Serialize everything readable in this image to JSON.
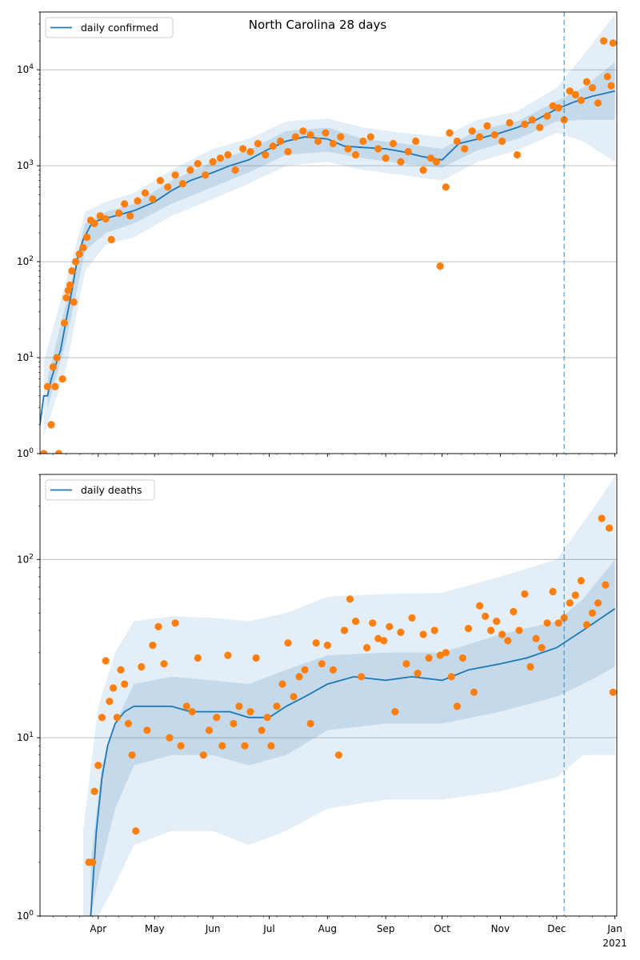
{
  "chart_data": [
    {
      "type": "line",
      "title": "North Carolina 28 days",
      "scale": "log",
      "ylim": [
        1,
        40000
      ],
      "y_ticks": [
        {
          "v": 1,
          "base": "10",
          "exp": "0"
        },
        {
          "v": 10,
          "base": "10",
          "exp": "1"
        },
        {
          "v": 100,
          "base": "10",
          "exp": "2"
        },
        {
          "v": 1000,
          "base": "10",
          "exp": "3"
        },
        {
          "v": 10000,
          "base": "10",
          "exp": "4"
        }
      ],
      "grid": "horizontal",
      "legend": {
        "placement": "top-left",
        "entries": [
          "daily confirmed"
        ]
      },
      "forecast_start": "2020-12-05",
      "colors": {
        "line": "#1f77b4",
        "points": "#ff7f0e",
        "band": "#1f77b4"
      },
      "series": [
        {
          "name": "daily confirmed",
          "kind": "line",
          "x": [
            "2020-03-01",
            "2020-03-03",
            "2020-03-05",
            "2020-03-07",
            "2020-03-09",
            "2020-03-12",
            "2020-03-15",
            "2020-03-18",
            "2020-03-21",
            "2020-03-24",
            "2020-03-28",
            "2020-04-01",
            "2020-04-10",
            "2020-04-20",
            "2020-05-01",
            "2020-05-10",
            "2020-05-20",
            "2020-06-01",
            "2020-06-10",
            "2020-06-20",
            "2020-07-01",
            "2020-07-10",
            "2020-07-20",
            "2020-08-01",
            "2020-08-10",
            "2020-08-20",
            "2020-09-01",
            "2020-09-10",
            "2020-09-20",
            "2020-10-01",
            "2020-10-10",
            "2020-10-20",
            "2020-11-01",
            "2020-11-10",
            "2020-11-20",
            "2020-12-01",
            "2020-12-10",
            "2020-12-20",
            "2021-01-01"
          ],
          "y": [
            2,
            4,
            4,
            6,
            8,
            12,
            25,
            50,
            110,
            170,
            240,
            270,
            300,
            340,
            420,
            550,
            700,
            850,
            1000,
            1150,
            1500,
            1800,
            2000,
            1900,
            1600,
            1550,
            1500,
            1400,
            1250,
            1150,
            1700,
            1900,
            2200,
            2500,
            3000,
            3900,
            4600,
            5300,
            6000
          ]
        },
        {
          "name": "band_50",
          "kind": "band",
          "x": [
            "2020-03-05",
            "2020-03-15",
            "2020-03-25",
            "2020-04-05",
            "2020-04-20",
            "2020-05-10",
            "2020-06-01",
            "2020-06-20",
            "2020-07-10",
            "2020-08-01",
            "2020-08-20",
            "2020-09-10",
            "2020-10-01",
            "2020-10-20",
            "2020-11-10",
            "2020-12-01",
            "2020-12-15",
            "2021-01-01"
          ],
          "lo": [
            3,
            15,
            130,
            200,
            250,
            400,
            600,
            850,
            1300,
            1400,
            1200,
            1050,
            950,
            1450,
            1900,
            2900,
            3000,
            3000
          ],
          "hi": [
            6,
            38,
            250,
            330,
            400,
            700,
            1100,
            1450,
            2300,
            2500,
            1900,
            1700,
            1500,
            2350,
            2900,
            4700,
            6500,
            12000
          ]
        },
        {
          "name": "band_90",
          "kind": "band",
          "x": [
            "2020-03-03",
            "2020-03-15",
            "2020-03-25",
            "2020-04-05",
            "2020-04-20",
            "2020-05-10",
            "2020-06-01",
            "2020-06-20",
            "2020-07-10",
            "2020-08-01",
            "2020-08-20",
            "2020-09-10",
            "2020-10-01",
            "2020-10-20",
            "2020-11-10",
            "2020-12-01",
            "2020-12-15",
            "2021-01-01"
          ],
          "lo": [
            1.5,
            8,
            80,
            150,
            180,
            300,
            450,
            650,
            1000,
            1100,
            900,
            800,
            700,
            1100,
            1450,
            2200,
            1800,
            1100
          ],
          "hi": [
            9,
            65,
            330,
            420,
            520,
            900,
            1500,
            1900,
            2900,
            3100,
            2500,
            2200,
            2000,
            3000,
            3700,
            6500,
            14000,
            38000
          ]
        },
        {
          "name": "reported",
          "kind": "scatter",
          "x": [
            "2020-03-03",
            "2020-03-05",
            "2020-03-07",
            "2020-03-08",
            "2020-03-09",
            "2020-03-10",
            "2020-03-11",
            "2020-03-13",
            "2020-03-14",
            "2020-03-15",
            "2020-03-16",
            "2020-03-17",
            "2020-03-18",
            "2020-03-19",
            "2020-03-20",
            "2020-03-22",
            "2020-03-24",
            "2020-03-26",
            "2020-03-28",
            "2020-03-30",
            "2020-04-02",
            "2020-04-05",
            "2020-04-08",
            "2020-04-12",
            "2020-04-15",
            "2020-04-18",
            "2020-04-22",
            "2020-04-26",
            "2020-04-30",
            "2020-05-04",
            "2020-05-08",
            "2020-05-12",
            "2020-05-16",
            "2020-05-20",
            "2020-05-24",
            "2020-05-28",
            "2020-06-01",
            "2020-06-05",
            "2020-06-09",
            "2020-06-13",
            "2020-06-17",
            "2020-06-21",
            "2020-06-25",
            "2020-06-29",
            "2020-07-03",
            "2020-07-07",
            "2020-07-11",
            "2020-07-15",
            "2020-07-19",
            "2020-07-23",
            "2020-07-27",
            "2020-07-31",
            "2020-08-04",
            "2020-08-08",
            "2020-08-12",
            "2020-08-16",
            "2020-08-20",
            "2020-08-24",
            "2020-08-28",
            "2020-09-01",
            "2020-09-05",
            "2020-09-09",
            "2020-09-13",
            "2020-09-17",
            "2020-09-21",
            "2020-09-25",
            "2020-09-28",
            "2020-09-30",
            "2020-10-03",
            "2020-10-05",
            "2020-10-09",
            "2020-10-13",
            "2020-10-17",
            "2020-10-21",
            "2020-10-25",
            "2020-10-29",
            "2020-11-02",
            "2020-11-06",
            "2020-11-10",
            "2020-11-14",
            "2020-11-18",
            "2020-11-22",
            "2020-11-26",
            "2020-11-29",
            "2020-12-02",
            "2020-12-05",
            "2020-12-08",
            "2020-12-11",
            "2020-12-14",
            "2020-12-17",
            "2020-12-20",
            "2020-12-23",
            "2020-12-26",
            "2020-12-28",
            "2020-12-30",
            "2020-12-31"
          ],
          "y": [
            1,
            5,
            2,
            8,
            5,
            10,
            1,
            6,
            23,
            42,
            50,
            57,
            80,
            38,
            100,
            120,
            140,
            180,
            270,
            250,
            300,
            280,
            170,
            320,
            400,
            300,
            430,
            520,
            450,
            700,
            600,
            800,
            650,
            900,
            1050,
            800,
            1100,
            1200,
            1300,
            900,
            1500,
            1400,
            1700,
            1300,
            1600,
            1800,
            1400,
            2000,
            2300,
            2100,
            1800,
            2200,
            1700,
            2000,
            1500,
            1300,
            1800,
            2000,
            1500,
            1200,
            1700,
            1100,
            1400,
            1800,
            900,
            1200,
            1100,
            90,
            600,
            2200,
            1800,
            1500,
            2300,
            2000,
            2600,
            2100,
            1800,
            2800,
            1300,
            2700,
            3000,
            2500,
            3300,
            4200,
            4000,
            3000,
            6000,
            5500,
            4800,
            7500,
            6500,
            4500,
            20000,
            8500,
            6800,
            19000
          ]
        }
      ]
    },
    {
      "type": "line",
      "scale": "log",
      "ylim": [
        1,
        300
      ],
      "y_ticks": [
        {
          "v": 1,
          "base": "10",
          "exp": "0"
        },
        {
          "v": 10,
          "base": "10",
          "exp": "1"
        },
        {
          "v": 100,
          "base": "10",
          "exp": "2"
        }
      ],
      "x_ticks": [
        {
          "date": "2020-04-01",
          "label": "Apr"
        },
        {
          "date": "2020-05-01",
          "label": "May"
        },
        {
          "date": "2020-06-01",
          "label": "Jun"
        },
        {
          "date": "2020-07-01",
          "label": "Jul"
        },
        {
          "date": "2020-08-01",
          "label": "Aug"
        },
        {
          "date": "2020-09-01",
          "label": "Sep"
        },
        {
          "date": "2020-10-01",
          "label": "Oct"
        },
        {
          "date": "2020-11-01",
          "label": "Nov"
        },
        {
          "date": "2020-12-01",
          "label": "Dec"
        },
        {
          "date": "2021-01-01",
          "label": "Jan"
        }
      ],
      "year_label": "2021",
      "grid": "horizontal",
      "legend": {
        "placement": "top-left",
        "entries": [
          "daily deaths"
        ]
      },
      "forecast_start": "2020-12-05",
      "series": [
        {
          "name": "daily deaths",
          "kind": "line",
          "x": [
            "2020-03-28",
            "2020-03-31",
            "2020-04-03",
            "2020-04-06",
            "2020-04-10",
            "2020-04-15",
            "2020-04-20",
            "2020-05-01",
            "2020-05-10",
            "2020-05-20",
            "2020-06-01",
            "2020-06-10",
            "2020-06-20",
            "2020-07-01",
            "2020-07-10",
            "2020-07-20",
            "2020-08-01",
            "2020-08-15",
            "2020-09-01",
            "2020-09-15",
            "2020-10-01",
            "2020-10-15",
            "2020-11-01",
            "2020-11-15",
            "2020-12-01",
            "2020-12-15",
            "2021-01-01"
          ],
          "y": [
            1,
            3,
            6,
            9,
            12,
            14,
            15,
            15,
            15,
            14,
            14,
            14,
            13,
            13,
            15,
            17,
            20,
            22,
            21,
            22,
            21,
            24,
            26,
            28,
            32,
            40,
            53
          ]
        },
        {
          "name": "band_50",
          "kind": "band",
          "x": [
            "2020-03-28",
            "2020-04-03",
            "2020-04-10",
            "2020-04-20",
            "2020-05-10",
            "2020-06-01",
            "2020-06-20",
            "2020-07-10",
            "2020-08-01",
            "2020-09-01",
            "2020-10-01",
            "2020-11-01",
            "2020-12-01",
            "2020-12-15",
            "2021-01-01"
          ],
          "lo": [
            1,
            2,
            4,
            7,
            8,
            8,
            7,
            8,
            11,
            12,
            12,
            14,
            17,
            20,
            25
          ],
          "hi": [
            2,
            7,
            12,
            20,
            22,
            21,
            20,
            24,
            29,
            30,
            30,
            38,
            45,
            60,
            100
          ]
        },
        {
          "name": "band_90",
          "kind": "band",
          "x": [
            "2020-03-24",
            "2020-04-01",
            "2020-04-10",
            "2020-04-20",
            "2020-05-10",
            "2020-06-01",
            "2020-06-20",
            "2020-07-10",
            "2020-08-01",
            "2020-09-01",
            "2020-10-01",
            "2020-11-01",
            "2020-12-01",
            "2020-12-15",
            "2021-01-01"
          ],
          "lo": [
            1,
            1,
            1.5,
            2.5,
            3,
            3,
            2.5,
            3,
            4,
            4.5,
            4.5,
            5,
            6,
            8,
            8
          ],
          "hi": [
            3,
            15,
            30,
            45,
            48,
            47,
            45,
            50,
            62,
            64,
            65,
            80,
            100,
            160,
            290
          ]
        },
        {
          "name": "reported",
          "kind": "scatter",
          "x": [
            "2020-03-27",
            "2020-03-29",
            "2020-03-30",
            "2020-04-01",
            "2020-04-03",
            "2020-04-05",
            "2020-04-07",
            "2020-04-09",
            "2020-04-11",
            "2020-04-13",
            "2020-04-15",
            "2020-04-17",
            "2020-04-19",
            "2020-04-21",
            "2020-04-24",
            "2020-04-27",
            "2020-04-30",
            "2020-05-03",
            "2020-05-06",
            "2020-05-09",
            "2020-05-12",
            "2020-05-15",
            "2020-05-18",
            "2020-05-21",
            "2020-05-24",
            "2020-05-27",
            "2020-05-30",
            "2020-06-03",
            "2020-06-06",
            "2020-06-09",
            "2020-06-12",
            "2020-06-15",
            "2020-06-18",
            "2020-06-21",
            "2020-06-24",
            "2020-06-27",
            "2020-06-30",
            "2020-07-02",
            "2020-07-05",
            "2020-07-08",
            "2020-07-11",
            "2020-07-14",
            "2020-07-17",
            "2020-07-20",
            "2020-07-23",
            "2020-07-26",
            "2020-07-29",
            "2020-08-01",
            "2020-08-04",
            "2020-08-07",
            "2020-08-10",
            "2020-08-13",
            "2020-08-16",
            "2020-08-19",
            "2020-08-22",
            "2020-08-25",
            "2020-08-28",
            "2020-08-31",
            "2020-09-03",
            "2020-09-06",
            "2020-09-09",
            "2020-09-12",
            "2020-09-15",
            "2020-09-18",
            "2020-09-21",
            "2020-09-24",
            "2020-09-27",
            "2020-09-30",
            "2020-10-03",
            "2020-10-06",
            "2020-10-09",
            "2020-10-12",
            "2020-10-15",
            "2020-10-18",
            "2020-10-21",
            "2020-10-24",
            "2020-10-27",
            "2020-10-30",
            "2020-11-02",
            "2020-11-05",
            "2020-11-08",
            "2020-11-11",
            "2020-11-14",
            "2020-11-17",
            "2020-11-20",
            "2020-11-23",
            "2020-11-26",
            "2020-11-29",
            "2020-12-02",
            "2020-12-05",
            "2020-12-08",
            "2020-12-11",
            "2020-12-14",
            "2020-12-17",
            "2020-12-20",
            "2020-12-23",
            "2020-12-25",
            "2020-12-27",
            "2020-12-29",
            "2020-12-31"
          ],
          "y": [
            2,
            2,
            5,
            7,
            13,
            27,
            16,
            19,
            13,
            24,
            20,
            12,
            8,
            3,
            25,
            11,
            33,
            42,
            26,
            10,
            44,
            9,
            15,
            14,
            28,
            8,
            11,
            13,
            9,
            29,
            12,
            15,
            9,
            14,
            28,
            11,
            13,
            9,
            15,
            20,
            34,
            17,
            22,
            24,
            12,
            34,
            26,
            33,
            24,
            8,
            40,
            60,
            45,
            22,
            32,
            44,
            36,
            35,
            42,
            14,
            39,
            26,
            47,
            23,
            38,
            28,
            40,
            29,
            30,
            22,
            15,
            28,
            41,
            18,
            55,
            48,
            40,
            45,
            38,
            35,
            51,
            40,
            64,
            25,
            36,
            32,
            44,
            66,
            44,
            47,
            57,
            63,
            76,
            43,
            50,
            57,
            170,
            72,
            150,
            18
          ]
        }
      ]
    }
  ]
}
